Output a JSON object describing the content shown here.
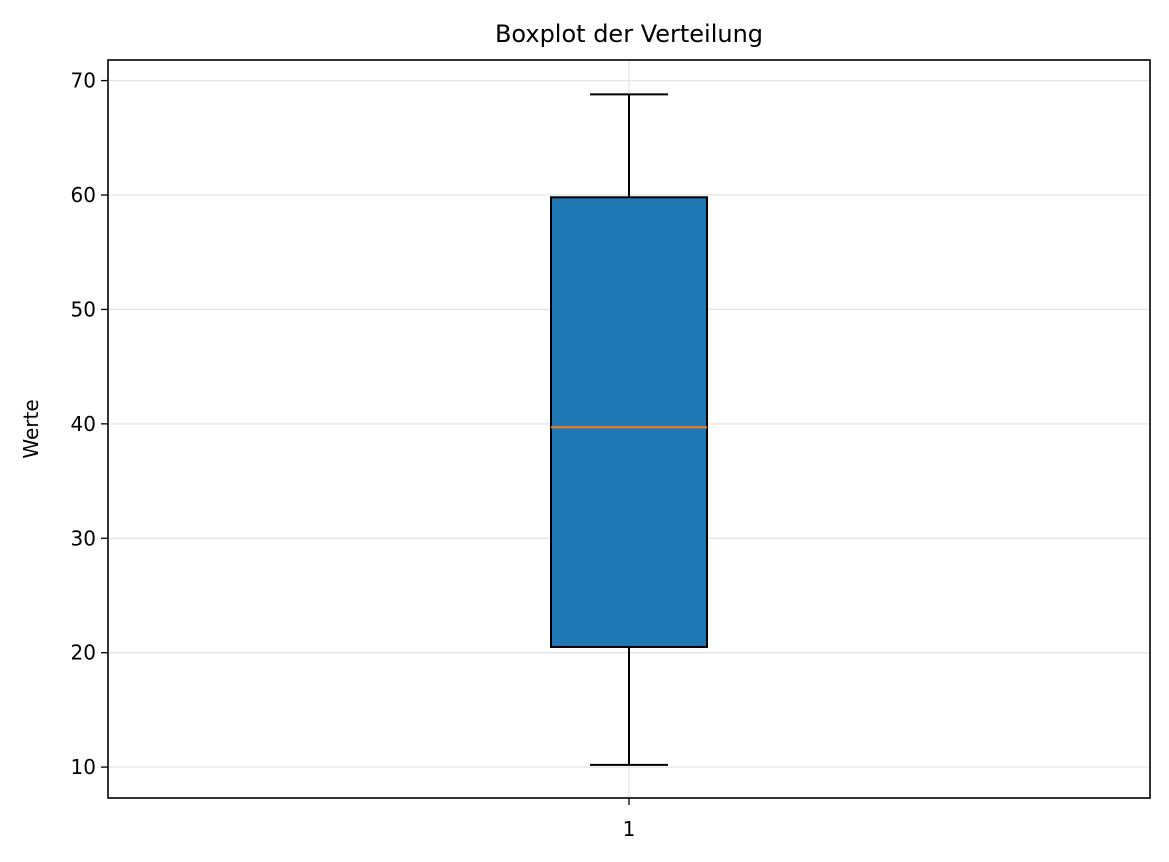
{
  "chart_data": {
    "type": "boxplot",
    "title": "Boxplot der Verteilung",
    "xlabel": "",
    "ylabel": "Werte",
    "categories": [
      "1"
    ],
    "boxes": [
      {
        "category": "1",
        "whisker_low": 10.2,
        "q1": 20.5,
        "median": 39.7,
        "q3": 59.8,
        "whisker_high": 68.8
      }
    ],
    "ylim": [
      7.3,
      71.8
    ],
    "yticks": [
      10,
      20,
      30,
      40,
      50,
      60,
      70
    ],
    "ytick_labels": [
      "10",
      "20",
      "30",
      "40",
      "50",
      "60",
      "70"
    ],
    "grid": true,
    "colors": {
      "box_fill": "#1f77b4",
      "median": "#ff7f0e",
      "edge": "#000000",
      "grid": "#e5e5e5"
    }
  }
}
